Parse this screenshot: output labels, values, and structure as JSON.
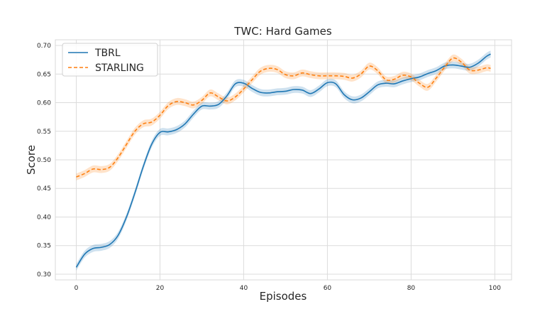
{
  "chart_data": {
    "type": "line",
    "title": "TWC: Hard Games",
    "xlabel": "Episodes",
    "ylabel": "Score",
    "xlim": [
      -5,
      104
    ],
    "ylim": [
      0.29,
      0.71
    ],
    "xticks": [
      0,
      20,
      40,
      60,
      80,
      100
    ],
    "yticks": [
      0.3,
      0.35,
      0.4,
      0.45,
      0.5,
      0.55,
      0.6,
      0.65,
      0.7
    ],
    "grid": true,
    "legend_position": "top-left",
    "series": [
      {
        "name": "TBRL",
        "color": "#1f77b4",
        "dash": "solid",
        "band": 0.006,
        "x": [
          0,
          2,
          4,
          6,
          8,
          10,
          12,
          14,
          16,
          18,
          20,
          22,
          24,
          26,
          28,
          30,
          32,
          34,
          36,
          38,
          40,
          42,
          44,
          46,
          48,
          50,
          52,
          54,
          56,
          58,
          60,
          62,
          64,
          66,
          68,
          70,
          72,
          74,
          76,
          78,
          80,
          82,
          84,
          86,
          88,
          90,
          92,
          94,
          96,
          98,
          99
        ],
        "y": [
          0.312,
          0.335,
          0.345,
          0.347,
          0.352,
          0.368,
          0.4,
          0.442,
          0.488,
          0.527,
          0.548,
          0.549,
          0.553,
          0.563,
          0.58,
          0.594,
          0.594,
          0.597,
          0.612,
          0.633,
          0.634,
          0.625,
          0.618,
          0.617,
          0.619,
          0.62,
          0.623,
          0.622,
          0.616,
          0.624,
          0.635,
          0.633,
          0.614,
          0.605,
          0.608,
          0.619,
          0.631,
          0.634,
          0.633,
          0.638,
          0.642,
          0.645,
          0.651,
          0.656,
          0.664,
          0.666,
          0.664,
          0.662,
          0.669,
          0.681,
          0.685
        ]
      },
      {
        "name": "STARLING",
        "color": "#ff7f0e",
        "dash": "dashed",
        "band": 0.006,
        "x": [
          0,
          2,
          4,
          6,
          8,
          10,
          12,
          14,
          16,
          18,
          20,
          22,
          24,
          26,
          28,
          30,
          32,
          34,
          36,
          38,
          40,
          42,
          44,
          46,
          48,
          50,
          52,
          54,
          56,
          58,
          60,
          62,
          64,
          66,
          68,
          70,
          72,
          74,
          76,
          78,
          80,
          82,
          84,
          86,
          88,
          90,
          92,
          94,
          96,
          98,
          99
        ],
        "y": [
          0.47,
          0.476,
          0.484,
          0.483,
          0.487,
          0.504,
          0.527,
          0.55,
          0.563,
          0.566,
          0.578,
          0.595,
          0.602,
          0.6,
          0.596,
          0.604,
          0.617,
          0.61,
          0.603,
          0.61,
          0.624,
          0.64,
          0.655,
          0.66,
          0.658,
          0.649,
          0.647,
          0.652,
          0.649,
          0.647,
          0.647,
          0.647,
          0.646,
          0.643,
          0.65,
          0.664,
          0.656,
          0.64,
          0.641,
          0.648,
          0.645,
          0.634,
          0.627,
          0.643,
          0.662,
          0.678,
          0.671,
          0.657,
          0.657,
          0.661,
          0.66
        ]
      }
    ]
  }
}
